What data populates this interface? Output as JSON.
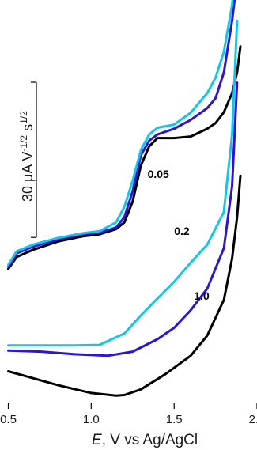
{
  "chart_data": {
    "type": "line",
    "xlabel": {
      "var": "E",
      "rest": ", V vs Ag/AgCl"
    },
    "xlim": [
      0.45,
      2.0
    ],
    "ylim": [
      -32,
      46
    ],
    "x_ticks": [
      {
        "value": 0.5,
        "label": "0.5"
      },
      {
        "value": 1.0,
        "label": "1.0"
      },
      {
        "value": 1.5,
        "label": "1.5"
      },
      {
        "value": 2.0,
        "label": "2.0"
      }
    ],
    "scale_bar": {
      "label": "30 μA V^-1/2 s^1/2",
      "label_main": "30 μA V",
      "sup1": "-1/2",
      "mid": " s",
      "sup2": "1/2",
      "value": 30
    },
    "series": [
      {
        "name": "0.05",
        "color": "#000000",
        "x": [
          0.5,
          0.55,
          0.65,
          0.8,
          0.95,
          1.05,
          1.15,
          1.2,
          1.25,
          1.3,
          1.35,
          1.4,
          1.5,
          1.6,
          1.7,
          1.75,
          1.8,
          1.85,
          1.88,
          1.9
        ],
        "y": [
          -6.0,
          -3.7,
          -2.3,
          -0.7,
          0.3,
          0.7,
          1.7,
          3.0,
          7.0,
          14.0,
          17.7,
          19.3,
          19.3,
          19.6,
          21.1,
          22.2,
          24.3,
          28.0,
          32.0,
          37.0
        ]
      },
      {
        "name": "0.2",
        "color": "#2a14d8",
        "x": [
          0.5,
          0.55,
          0.65,
          0.8,
          0.95,
          1.05,
          1.15,
          1.2,
          1.25,
          1.3,
          1.35,
          1.4,
          1.5,
          1.6,
          1.7,
          1.75,
          1.8,
          1.85,
          1.88
        ],
        "y": [
          -5.6,
          -3.0,
          -1.7,
          -0.3,
          0.7,
          1.0,
          2.0,
          4.0,
          9.0,
          16.0,
          18.8,
          20.0,
          21.1,
          22.8,
          25.1,
          27.0,
          32.0,
          42.0,
          50.0
        ]
      },
      {
        "name": "1.0",
        "color": "#12c6ea",
        "x": [
          0.5,
          0.55,
          0.65,
          0.8,
          0.95,
          1.05,
          1.15,
          1.2,
          1.25,
          1.3,
          1.35,
          1.4,
          1.5,
          1.6,
          1.7,
          1.75,
          1.8,
          1.85,
          1.87
        ],
        "y": [
          -5.2,
          -2.6,
          -1.3,
          0.0,
          0.9,
          1.3,
          3.0,
          6.0,
          11.0,
          17.0,
          20.0,
          21.3,
          21.9,
          24.2,
          28.0,
          31.0,
          36.0,
          45.0,
          52.0
        ]
      },
      {
        "name": "0.2",
        "color": "#12c6ea",
        "x": [
          0.5,
          0.7,
          0.9,
          1.05,
          1.2,
          1.3,
          1.4,
          1.5,
          1.6,
          1.7,
          1.8,
          1.85,
          1.88
        ],
        "y": [
          -20.8,
          -20.8,
          -20.8,
          -20.7,
          -18.5,
          -15.0,
          -11.7,
          -8.5,
          -4.8,
          -1.3,
          5.0,
          20.0,
          42.0
        ]
      },
      {
        "name": "1.0",
        "color": "#2a14d8",
        "x": [
          0.5,
          0.7,
          0.9,
          1.1,
          1.25,
          1.4,
          1.5,
          1.6,
          1.7,
          1.8,
          1.85,
          1.88
        ],
        "y": [
          -21.8,
          -22.0,
          -22.5,
          -22.8,
          -22.0,
          -19.6,
          -17.4,
          -14.0,
          -9.8,
          -2.0,
          10.0,
          30.0
        ]
      },
      {
        "name": "1.0",
        "color": "#000000",
        "x": [
          0.5,
          0.6,
          0.8,
          1.0,
          1.15,
          1.2,
          1.3,
          1.45,
          1.6,
          1.7,
          1.8,
          1.85,
          1.88,
          1.9
        ],
        "y": [
          -25.8,
          -26.7,
          -28.5,
          -30.0,
          -30.5,
          -30.4,
          -29.3,
          -26.3,
          -22.8,
          -18.9,
          -12.0,
          -4.0,
          4.0,
          12.0
        ]
      }
    ],
    "labels": [
      {
        "text": "0.05",
        "x": 1.34,
        "y": 11.6
      },
      {
        "text": "0.2",
        "x": 1.5,
        "y": 0.6
      },
      {
        "text": "1.0",
        "x": 1.62,
        "y": -12.0
      }
    ]
  }
}
